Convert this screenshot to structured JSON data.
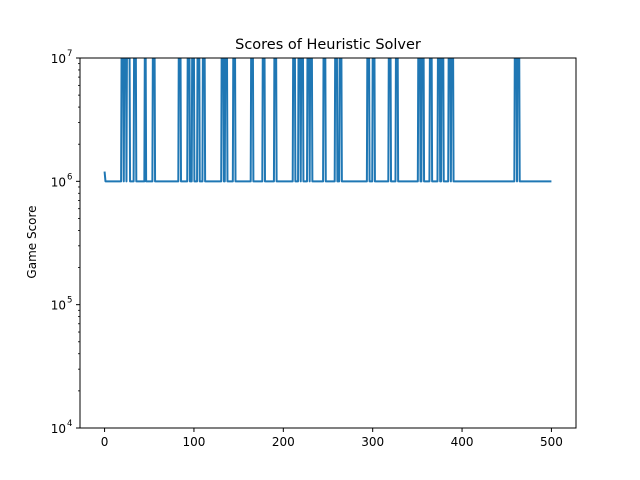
{
  "chart_data": {
    "type": "line",
    "title": "Scores of Heuristic Solver",
    "xlabel": "",
    "ylabel": "Game Score",
    "yscale": "log",
    "xlim": [
      -27.5,
      527.5
    ],
    "ylim": [
      10000,
      10000000
    ],
    "xticks": [
      0,
      100,
      200,
      300,
      400,
      500
    ],
    "xtick_labels": [
      "0",
      "100",
      "200",
      "300",
      "400",
      "500"
    ],
    "yticks": [
      10000,
      100000,
      1000000,
      10000000
    ],
    "ytick_labels": [
      {
        "base": "10",
        "exp": "4"
      },
      {
        "base": "10",
        "exp": "5"
      },
      {
        "base": "10",
        "exp": "6"
      },
      {
        "base": "10",
        "exp": "7"
      }
    ],
    "grid": false,
    "color": "#1f77b4",
    "series": [
      {
        "name": "",
        "x_start": 0,
        "x_end": 500,
        "baseline": 1000000,
        "initial": [
          [
            0,
            1200000
          ],
          [
            1,
            1000000
          ]
        ],
        "spikes": [
          {
            "x": [
              19,
              21
            ],
            "value": 10000000
          },
          {
            "x": [
              22,
              24
            ],
            "value": 10000000
          },
          {
            "x": [
              25,
              28
            ],
            "value": 10000000
          },
          {
            "x": [
              33,
              35
            ],
            "value": 10000000
          },
          {
            "x": [
              45,
              46
            ],
            "value": 10000000
          },
          {
            "x": [
              54,
              56
            ],
            "value": 10000000
          },
          {
            "x": [
              83,
              85
            ],
            "value": 10000000
          },
          {
            "x": [
              93,
              95
            ],
            "value": 10000000
          },
          {
            "x": [
              98,
              100
            ],
            "value": 10000000
          },
          {
            "x": [
              104,
              106
            ],
            "value": 10000000
          },
          {
            "x": [
              110,
              112
            ],
            "value": 10000000
          },
          {
            "x": [
              131,
              133
            ],
            "value": 10000000
          },
          {
            "x": [
              135,
              137
            ],
            "value": 10000000
          },
          {
            "x": [
              144,
              146
            ],
            "value": 10000000
          },
          {
            "x": [
              164,
              166
            ],
            "value": 10000000
          },
          {
            "x": [
              177,
              179
            ],
            "value": 10000000
          },
          {
            "x": [
              190,
              192
            ],
            "value": 10000000
          },
          {
            "x": [
              211,
              213
            ],
            "value": 10000000
          },
          {
            "x": [
              217,
              219
            ],
            "value": 10000000
          },
          {
            "x": [
              220,
              222
            ],
            "value": 10000000
          },
          {
            "x": [
              227,
              229
            ],
            "value": 10000000
          },
          {
            "x": [
              230,
              232
            ],
            "value": 10000000
          },
          {
            "x": [
              245,
              247
            ],
            "value": 10000000
          },
          {
            "x": [
              258,
              260
            ],
            "value": 10000000
          },
          {
            "x": [
              263,
              265
            ],
            "value": 10000000
          },
          {
            "x": [
              294,
              296
            ],
            "value": 10000000
          },
          {
            "x": [
              300,
              302
            ],
            "value": 10000000
          },
          {
            "x": [
              318,
              320
            ],
            "value": 10000000
          },
          {
            "x": [
              326,
              328
            ],
            "value": 10000000
          },
          {
            "x": [
              351,
              353
            ],
            "value": 10000000
          },
          {
            "x": [
              355,
              357
            ],
            "value": 10000000
          },
          {
            "x": [
              364,
              366
            ],
            "value": 10000000
          },
          {
            "x": [
              373,
              375
            ],
            "value": 10000000
          },
          {
            "x": [
              377,
              379
            ],
            "value": 10000000
          },
          {
            "x": [
              385,
              387
            ],
            "value": 10000000
          },
          {
            "x": [
              388,
              390
            ],
            "value": 10000000
          },
          {
            "x": [
              459,
              461
            ],
            "value": 10000000
          },
          {
            "x": [
              462,
              464
            ],
            "value": 10000000
          }
        ]
      }
    ]
  }
}
